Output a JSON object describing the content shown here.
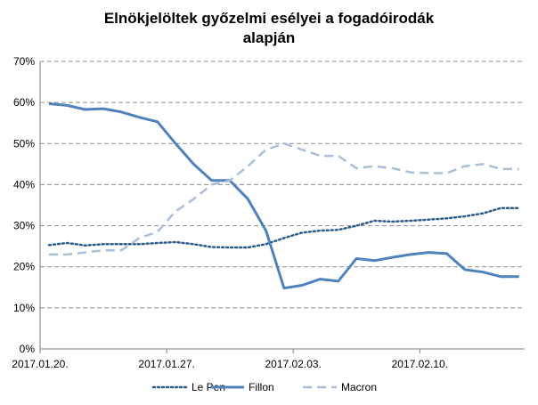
{
  "chart_data": {
    "type": "line",
    "title_lines": [
      "Elnökjelöltek győzelmi esélyei a fogadóirodák",
      "alapján"
    ],
    "xlabel": "",
    "ylabel": "",
    "x_ticks": [
      "2017.01.20.",
      "2017.01.27.",
      "2017.02.03.",
      "2017.02.10."
    ],
    "x": [
      "2017.01.20.",
      "2017.01.21.",
      "2017.01.22.",
      "2017.01.23.",
      "2017.01.24.",
      "2017.01.25.",
      "2017.01.26.",
      "2017.01.27.",
      "2017.01.28.",
      "2017.01.29.",
      "2017.01.30.",
      "2017.01.31.",
      "2017.02.01.",
      "2017.02.02.",
      "2017.02.03.",
      "2017.02.04.",
      "2017.02.05.",
      "2017.02.06.",
      "2017.02.07.",
      "2017.02.08.",
      "2017.02.09.",
      "2017.02.10.",
      "2017.02.11.",
      "2017.02.12.",
      "2017.02.13.",
      "2017.02.14.",
      "2017.02.15."
    ],
    "ylim": [
      0,
      70
    ],
    "y_ticks": [
      "0%",
      "10%",
      "20%",
      "30%",
      "40%",
      "50%",
      "60%",
      "70%"
    ],
    "grid": true,
    "legend_position": "bottom",
    "series": [
      {
        "name": "Le Pen",
        "style": "dotted",
        "color": "#2e5c8a",
        "values": [
          25.3,
          25.8,
          25.2,
          25.5,
          25.5,
          25.5,
          25.8,
          26.0,
          25.5,
          24.8,
          24.7,
          24.7,
          25.5,
          27.0,
          28.3,
          28.8,
          29.0,
          30.0,
          31.2,
          31.0,
          31.2,
          31.5,
          31.8,
          32.3,
          33.0,
          34.3,
          34.3
        ]
      },
      {
        "name": "Fillon",
        "style": "solid",
        "color": "#4f81bd",
        "values": [
          59.7,
          59.3,
          58.3,
          58.5,
          57.7,
          56.4,
          55.3,
          50.0,
          45.0,
          41.0,
          41.0,
          36.5,
          28.8,
          14.8,
          15.5,
          17.0,
          16.5,
          22.0,
          21.5,
          22.3,
          23.0,
          23.5,
          23.2,
          19.3,
          18.7,
          17.6,
          17.6
        ]
      },
      {
        "name": "Macron",
        "style": "dashed",
        "color": "#a9bfd9",
        "values": [
          23.0,
          23.0,
          23.5,
          24.0,
          24.0,
          27.0,
          28.5,
          33.5,
          36.5,
          40.0,
          41.0,
          44.5,
          48.5,
          50.0,
          48.5,
          47.0,
          47.0,
          44.0,
          44.5,
          44.0,
          43.0,
          42.8,
          42.8,
          44.5,
          45.0,
          43.8,
          43.8
        ]
      }
    ]
  }
}
